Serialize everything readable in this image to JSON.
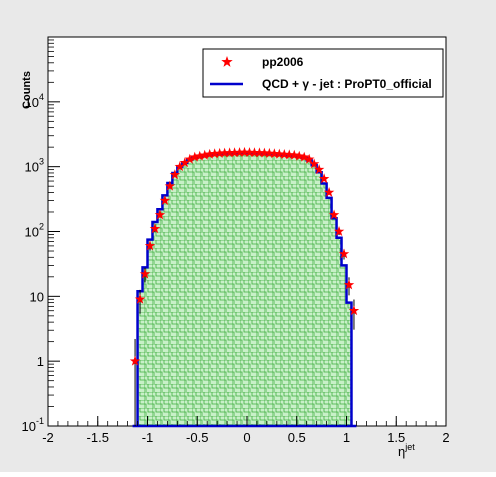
{
  "chart_data": {
    "type": "scatter",
    "title": "",
    "xlabel": "η",
    "xlabel_superscript": "jet",
    "ylabel": "Counts",
    "xlim": [
      -2,
      2
    ],
    "ylim": [
      0.1,
      100000
    ],
    "y_scale": "log",
    "x_tick_labels": [
      "-2",
      "-1.5",
      "-1",
      "-0.5",
      "0",
      "0.5",
      "1",
      "1.5",
      "2"
    ],
    "y_tick_labels": [
      {
        "base": "10",
        "exp": "-1",
        "value": 0.1
      },
      {
        "base": "1",
        "exp": "",
        "value": 1
      },
      {
        "base": "10",
        "exp": "",
        "value": 10
      },
      {
        "base": "10",
        "exp": "2",
        "value": 100
      },
      {
        "base": "10",
        "exp": "3",
        "value": 1000
      },
      {
        "base": "10",
        "exp": "4",
        "value": 10000
      }
    ],
    "legend": {
      "placement": "top-right",
      "entries": [
        {
          "label": "pp2006",
          "marker": "star",
          "color": "#ff0000"
        },
        {
          "label": "QCD + γ - jet : ProPT0_official",
          "marker": "line",
          "color": "#0000cc"
        }
      ]
    },
    "series": [
      {
        "name": "pp2006",
        "kind": "points",
        "color": "#ff0000",
        "x": [
          -1.125,
          -1.075,
          -1.025,
          -0.975,
          -0.925,
          -0.875,
          -0.825,
          -0.775,
          -0.725,
          -0.675,
          -0.625,
          -0.575,
          -0.525,
          -0.475,
          -0.425,
          -0.375,
          -0.325,
          -0.275,
          -0.225,
          -0.175,
          -0.125,
          -0.075,
          -0.025,
          0.025,
          0.075,
          0.125,
          0.175,
          0.225,
          0.275,
          0.325,
          0.375,
          0.425,
          0.475,
          0.525,
          0.575,
          0.625,
          0.675,
          0.725,
          0.775,
          0.825,
          0.875,
          0.925,
          0.975,
          1.025,
          1.075
        ],
        "y": [
          1,
          9,
          22,
          60,
          110,
          180,
          300,
          500,
          750,
          1000,
          1150,
          1300,
          1400,
          1450,
          1500,
          1550,
          1580,
          1600,
          1620,
          1630,
          1640,
          1650,
          1660,
          1650,
          1640,
          1630,
          1620,
          1600,
          1580,
          1560,
          1540,
          1520,
          1500,
          1450,
          1400,
          1300,
          1100,
          900,
          650,
          400,
          180,
          100,
          45,
          15,
          6
        ]
      },
      {
        "name": "QCD + γ - jet : ProPT0_official",
        "kind": "step",
        "color": "#0000cc",
        "bin_edges": [
          -1.15,
          -1.1,
          -1.05,
          -1.0,
          -0.95,
          -0.9,
          -0.85,
          -0.8,
          -0.75,
          -0.7,
          -0.65,
          -0.6,
          -0.55,
          -0.5,
          -0.45,
          -0.4,
          -0.35,
          -0.3,
          -0.25,
          -0.2,
          -0.15,
          -0.1,
          -0.05,
          0.0,
          0.05,
          0.1,
          0.15,
          0.2,
          0.25,
          0.3,
          0.35,
          0.4,
          0.45,
          0.5,
          0.55,
          0.6,
          0.65,
          0.7,
          0.75,
          0.8,
          0.85,
          0.9,
          0.95,
          1.0,
          1.05,
          1.1
        ],
        "values": [
          0.1,
          12,
          28,
          75,
          140,
          220,
          360,
          560,
          800,
          1000,
          1150,
          1280,
          1380,
          1430,
          1480,
          1520,
          1550,
          1570,
          1590,
          1600,
          1610,
          1620,
          1630,
          1620,
          1610,
          1600,
          1590,
          1570,
          1550,
          1530,
          1510,
          1490,
          1470,
          1420,
          1360,
          1250,
          1050,
          820,
          550,
          330,
          160,
          80,
          30,
          8,
          0.1
        ]
      }
    ],
    "grid": false
  }
}
